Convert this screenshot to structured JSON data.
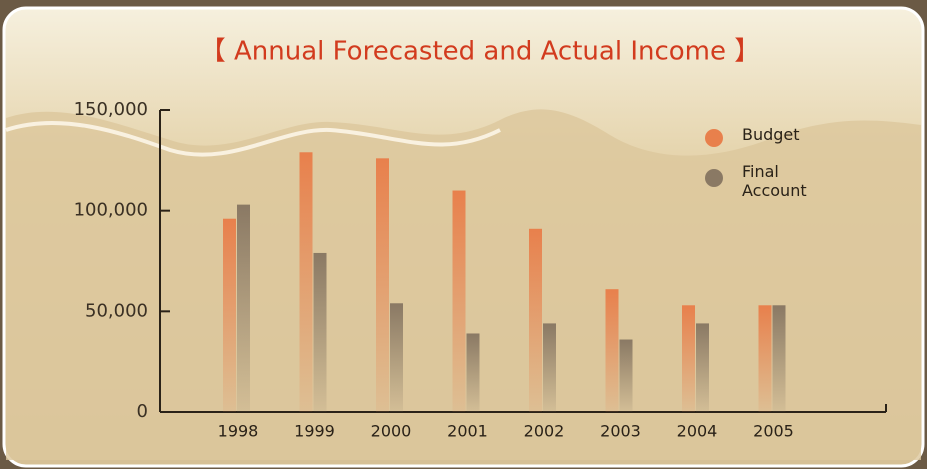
{
  "chart_data": {
    "type": "bar",
    "title": "【 Annual Forecasted and Actual Income 】",
    "categories": [
      "1998",
      "1999",
      "2000",
      "2001",
      "2002",
      "2003",
      "2004",
      "2005"
    ],
    "series": [
      {
        "name": "Budget",
        "color": "#e8804c",
        "values": [
          96000,
          129000,
          126000,
          110000,
          91000,
          61000,
          53000,
          53000
        ]
      },
      {
        "name": "Final Account",
        "color": "#8a7964",
        "values": [
          103000,
          79000,
          54000,
          39000,
          44000,
          36000,
          44000,
          53000
        ]
      }
    ],
    "ylim": [
      0,
      150000
    ],
    "yticks": [
      0,
      {
        "value": 50000,
        "label": "50,000"
      },
      {
        "value": 100000,
        "label": "100,000"
      },
      {
        "value": 150000,
        "label": "150,000"
      }
    ]
  }
}
